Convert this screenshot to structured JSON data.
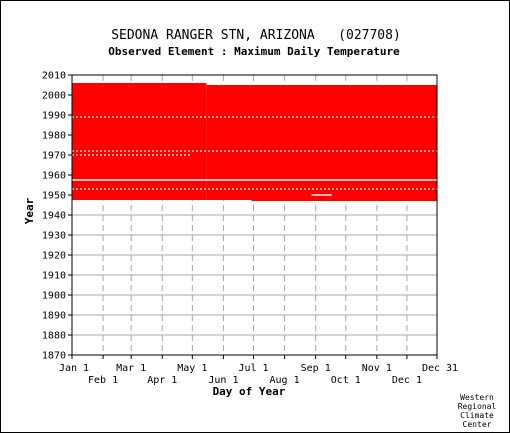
{
  "chart_data": {
    "type": "heatmap",
    "title": "SEDONA RANGER STN, ARIZONA   (027708)",
    "subtitle": "Observed Element : Maximum Daily Temperature",
    "xlabel": "Day of Year",
    "ylabel": "Year",
    "credit": [
      "Western",
      "Regional",
      "Climate",
      "Center"
    ],
    "x_axis": {
      "range_day_of_year": [
        1,
        365
      ],
      "ticks_upper": [
        {
          "label": "Jan 1",
          "day": 1
        },
        {
          "label": "Mar 1",
          "day": 60
        },
        {
          "label": "May 1",
          "day": 121
        },
        {
          "label": "Jul 1",
          "day": 182
        },
        {
          "label": "Sep 1",
          "day": 244
        },
        {
          "label": "Nov 1",
          "day": 305
        },
        {
          "label": "Dec 31",
          "day": 365
        }
      ],
      "ticks_lower": [
        {
          "label": "Feb 1",
          "day": 32
        },
        {
          "label": "Apr 1",
          "day": 91
        },
        {
          "label": "Jun 1",
          "day": 152
        },
        {
          "label": "Aug 1",
          "day": 213
        },
        {
          "label": "Oct 1",
          "day": 274
        },
        {
          "label": "Dec 1",
          "day": 335
        }
      ]
    },
    "y_axis": {
      "range": [
        1870,
        2010
      ],
      "ticks": [
        1870,
        1880,
        1890,
        1900,
        1910,
        1920,
        1930,
        1940,
        1950,
        1960,
        1970,
        1980,
        1990,
        2000,
        2010
      ]
    },
    "grid": true,
    "data_color": "#ff0000",
    "record_span": {
      "start_year": 1947,
      "end_year": 2006
    },
    "coverage": [
      {
        "from_day": 1,
        "to_day": 135,
        "start_year": 1947.5,
        "end_year": 2006
      },
      {
        "from_day": 135,
        "to_day": 180,
        "start_year": 1947.5,
        "end_year": 2005
      },
      {
        "from_day": 180,
        "to_day": 365,
        "start_year": 1947,
        "end_year": 2005
      }
    ],
    "missing_rows": [
      {
        "year": 1957.5,
        "from_day": 1,
        "to_day": 365
      },
      {
        "year": 1989,
        "from_day": 1,
        "to_day": 365,
        "dotted": true
      },
      {
        "year": 1972,
        "from_day": 1,
        "to_day": 365,
        "dotted": true
      },
      {
        "year": 1970,
        "from_day": 1,
        "to_day": 120,
        "dotted": true
      },
      {
        "year": 1953,
        "from_day": 1,
        "to_day": 365,
        "dotted": true
      },
      {
        "year": 1950,
        "from_day": 240,
        "to_day": 260
      }
    ]
  }
}
